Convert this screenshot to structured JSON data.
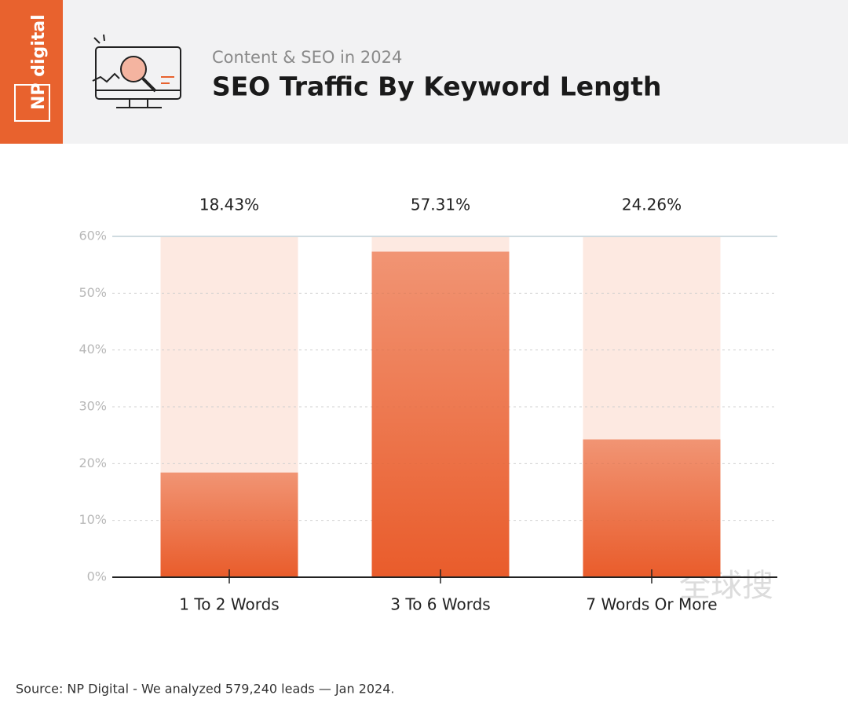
{
  "logo": "NP digital",
  "watermark": "全球搜",
  "chart_data": {
    "type": "bar",
    "subtitle": "Content & SEO in 2024",
    "title": "SEO Traffic By Keyword Length",
    "categories": [
      "1 To 2 Words",
      "3 To 6 Words",
      "7 Words Or More"
    ],
    "values": [
      18.43,
      57.31,
      24.26
    ],
    "value_labels": [
      "18.43%",
      "57.31%",
      "24.26%"
    ],
    "color": "#e95c2b",
    "ylim": [
      0,
      60
    ],
    "yticks": [
      {
        "value": 0,
        "label": "0%"
      },
      {
        "value": 10,
        "label": "10%"
      },
      {
        "value": 20,
        "label": "20%"
      },
      {
        "value": 30,
        "label": "30%"
      },
      {
        "value": 40,
        "label": "40%"
      },
      {
        "value": 50,
        "label": "50%"
      },
      {
        "value": 60,
        "label": "60%"
      }
    ],
    "grid": true,
    "source": "Source: NP Digital - We analyzed 579,240 leads — Jan 2024."
  }
}
